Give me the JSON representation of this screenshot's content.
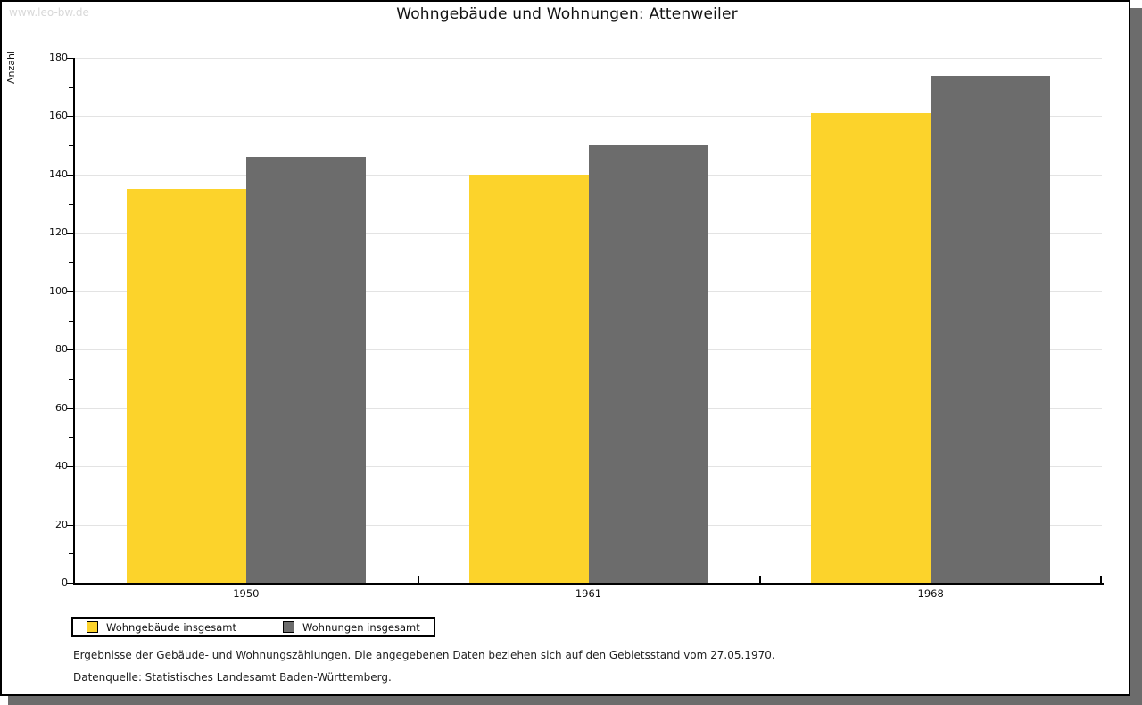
{
  "watermark": "www.leo-bw.de",
  "title": "Wohngebäude und Wohnungen: Attenweiler",
  "chart_data": {
    "type": "bar",
    "title": "Wohngebäude und Wohnungen: Attenweiler",
    "xlabel": "",
    "ylabel": "Anzahl",
    "categories": [
      "1950",
      "1961",
      "1968"
    ],
    "series": [
      {
        "name": "Wohngebäude insgesamt",
        "color": "#fcd32b",
        "values": [
          135,
          140,
          161
        ]
      },
      {
        "name": "Wohnungen insgesamt",
        "color": "#6c6c6c",
        "values": [
          146,
          150,
          174
        ]
      }
    ],
    "ylim": [
      0,
      180
    ],
    "ytick_major": 20,
    "ytick_minor": 10,
    "grid": "horizontal major gridlines, light gray",
    "legend_position": "bottom-left boxed"
  },
  "footer": {
    "line1": "Ergebnisse der Gebäude- und Wohnungszählungen. Die angegebenen Daten beziehen sich auf den Gebietsstand vom 27.05.1970.",
    "line2": "Datenquelle: Statistisches Landesamt Baden-Württemberg."
  },
  "colors": {
    "bar_yellow": "#fcd32b",
    "bar_gray": "#6c6c6c",
    "gridline": "#e3e3e3",
    "axis": "#000000",
    "watermark": "#d9d9d9",
    "frame_shadow": "#6c6c6c"
  }
}
